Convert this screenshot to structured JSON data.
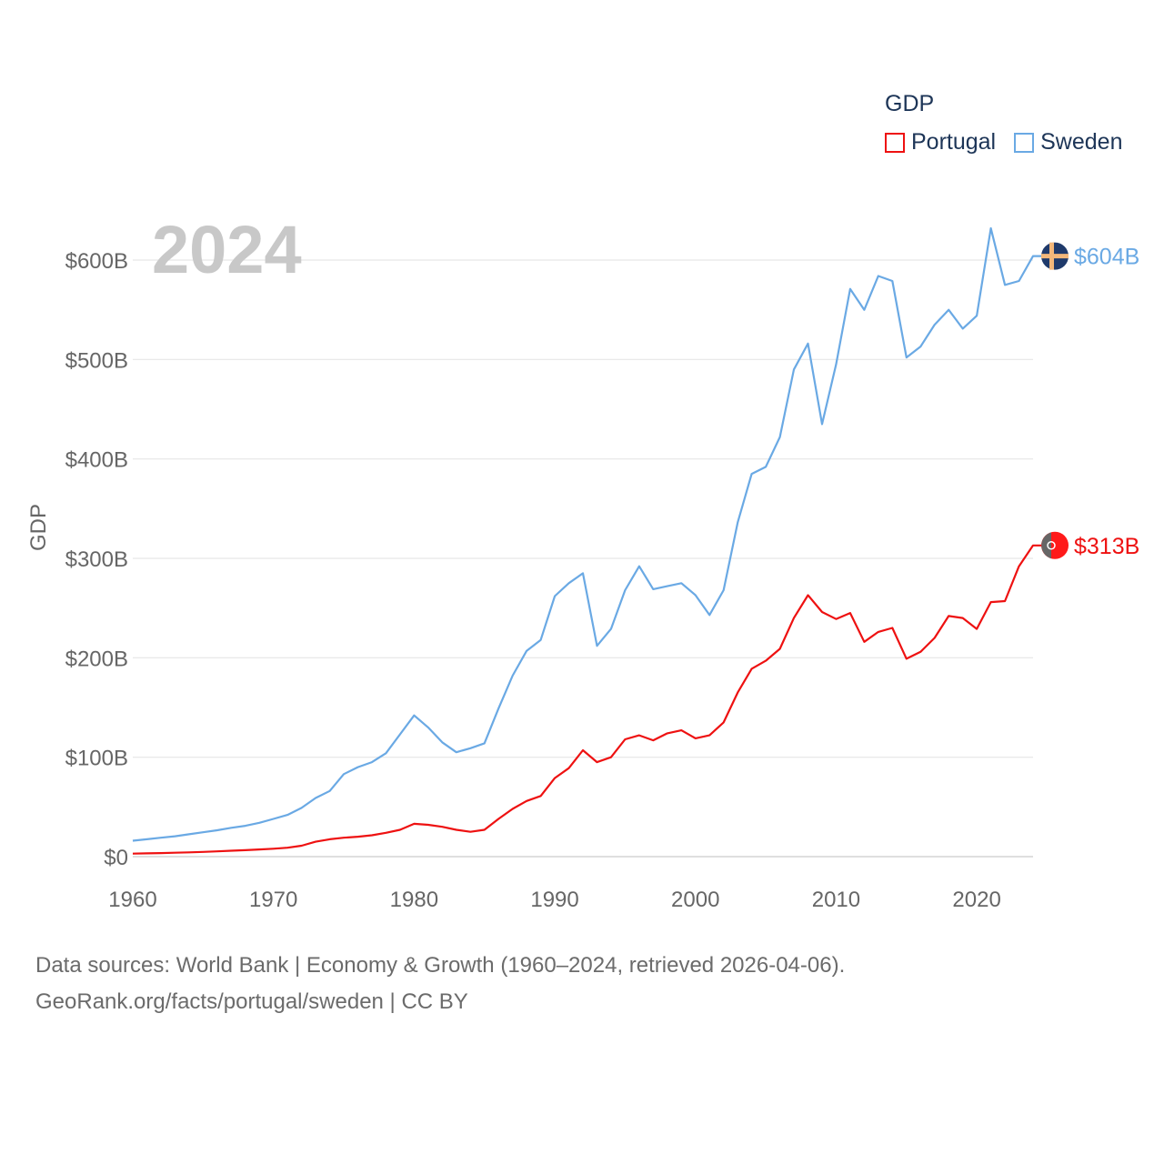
{
  "legend": {
    "title": "GDP",
    "portugal_label": "Portugal",
    "sweden_label": "Sweden"
  },
  "footer": {
    "line1": "Data sources: World Bank | Economy & Growth (1960–2024, retrieved 2026-04-06).",
    "line2": "GeoRank.org/facts/portugal/sweden | CC BY"
  },
  "colors": {
    "portugal": "#ee1111",
    "sweden": "#6aa9e4"
  },
  "icons": {
    "portugal": "portugal-flag-icon",
    "sweden": "sweden-flag-icon"
  },
  "chart_data": {
    "type": "line",
    "title": "2024",
    "ylabel": "GDP",
    "xlabel": "",
    "xlim": [
      1960,
      2024
    ],
    "ylim": [
      0,
      600
    ],
    "x_ticks": [
      1960,
      1970,
      1980,
      1990,
      2000,
      2010,
      2020
    ],
    "y_ticks": [
      0,
      100,
      200,
      300,
      400,
      500,
      600
    ],
    "y_tick_labels": [
      "$0",
      "$100B",
      "$200B",
      "$300B",
      "$400B",
      "$500B",
      "$600B"
    ],
    "grid": true,
    "x": [
      1960,
      1961,
      1962,
      1963,
      1964,
      1965,
      1966,
      1967,
      1968,
      1969,
      1970,
      1971,
      1972,
      1973,
      1974,
      1975,
      1976,
      1977,
      1978,
      1979,
      1980,
      1981,
      1982,
      1983,
      1984,
      1985,
      1986,
      1987,
      1988,
      1989,
      1990,
      1991,
      1992,
      1993,
      1994,
      1995,
      1996,
      1997,
      1998,
      1999,
      2000,
      2001,
      2002,
      2003,
      2004,
      2005,
      2006,
      2007,
      2008,
      2009,
      2010,
      2011,
      2012,
      2013,
      2014,
      2015,
      2016,
      2017,
      2018,
      2019,
      2020,
      2021,
      2022,
      2023,
      2024
    ],
    "series": [
      {
        "name": "Portugal",
        "end_label": "$313B",
        "values": [
          3,
          3.3,
          3.6,
          3.9,
          4.3,
          4.8,
          5.3,
          5.9,
          6.5,
          7.2,
          8,
          9,
          11,
          15,
          17.5,
          19,
          20,
          21.5,
          24,
          27,
          33,
          32,
          30,
          27,
          25,
          27,
          38,
          48,
          56,
          61,
          79,
          89,
          107,
          95,
          100,
          118,
          122,
          117,
          124,
          127,
          119,
          122,
          135,
          165,
          189,
          197,
          209,
          240,
          263,
          246,
          239,
          245,
          216,
          226,
          230,
          199,
          206,
          220,
          242,
          240,
          229,
          256,
          257,
          292,
          313
        ]
      },
      {
        "name": "Sweden",
        "end_label": "$604B",
        "values": [
          16,
          17.5,
          19,
          20.5,
          22.5,
          24.5,
          26.5,
          29,
          31,
          34,
          38,
          42,
          49,
          59,
          66,
          83,
          90,
          95,
          104,
          123,
          142,
          130,
          115,
          105,
          109,
          114,
          149,
          182,
          207,
          218,
          262,
          275,
          285,
          212,
          229,
          268,
          292,
          269,
          272,
          275,
          263,
          243,
          268,
          336,
          385,
          392,
          422,
          490,
          516,
          435,
          495,
          571,
          550,
          584,
          579,
          502,
          513,
          535,
          550,
          531,
          544,
          632,
          575,
          579,
          604
        ]
      }
    ]
  }
}
